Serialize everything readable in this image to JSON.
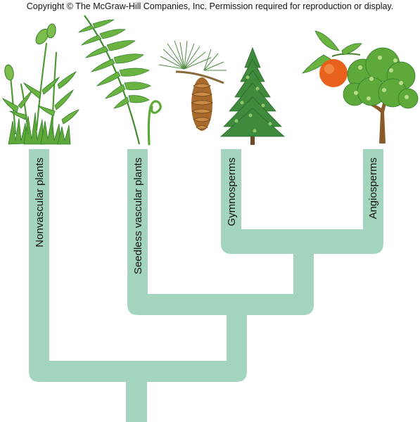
{
  "copyright": "Copyright © The McGraw-Hill Companies, Inc. Permission required for reproduction or display.",
  "colors": {
    "branch": "#a3d4be",
    "leaf_green": "#5fa83a",
    "leaf_dark": "#2f7d2a",
    "orange": "#e8611d",
    "cone": "#a8692d",
    "trunk": "#8a5a2b"
  },
  "groups": [
    {
      "label": "Nonvascular plants",
      "icon": "moss-icon"
    },
    {
      "label": "Seedless vascular plants",
      "icon": "fern-icon"
    },
    {
      "label": "Gymnosperms",
      "icon": "pine-tree-icon"
    },
    {
      "label": "Angiosperms",
      "icon": "orange-tree-icon"
    }
  ]
}
